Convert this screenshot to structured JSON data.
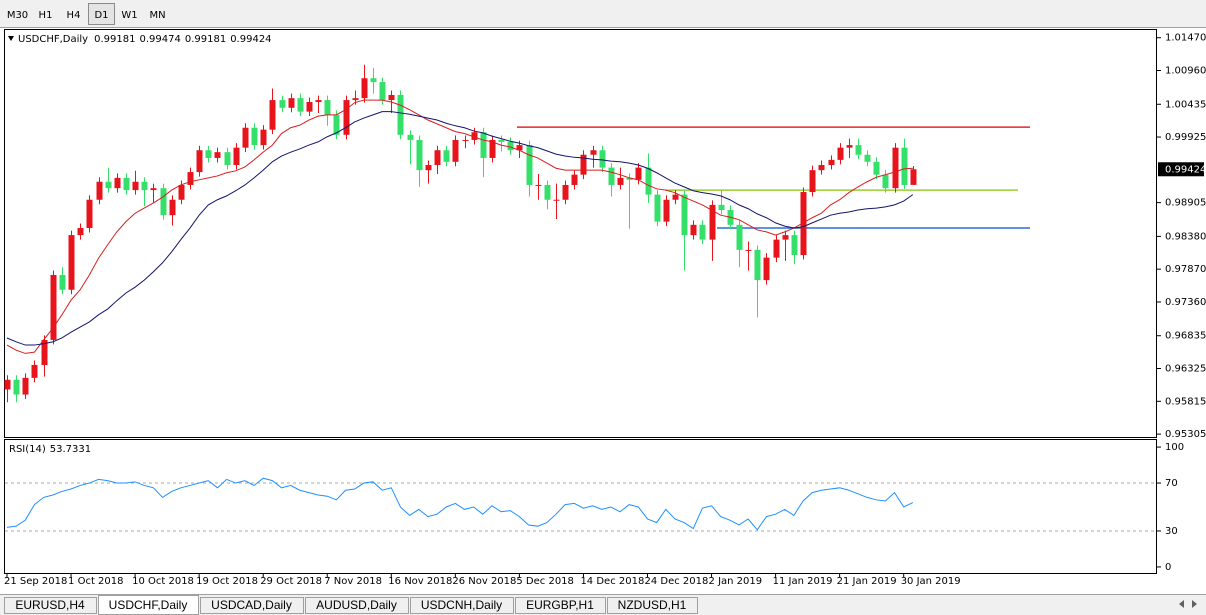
{
  "toolbar": {
    "timeframes": [
      {
        "label": "M30"
      },
      {
        "label": "H1"
      },
      {
        "label": "H4"
      },
      {
        "label": "D1",
        "selected": true
      },
      {
        "label": "W1"
      },
      {
        "label": "MN"
      }
    ]
  },
  "chart_data": [
    {
      "type": "candlestick",
      "title": "USDCHF,Daily",
      "header_ohlc": [
        0.99181,
        0.99474,
        0.99181,
        0.99424
      ],
      "categories": [
        "21 Sep 2018",
        null,
        null,
        null,
        null,
        null,
        null,
        "1 Oct 2018",
        null,
        null,
        null,
        null,
        null,
        null,
        "10 Oct 2018",
        null,
        null,
        null,
        null,
        null,
        null,
        "19 Oct 2018",
        null,
        null,
        null,
        null,
        null,
        null,
        "29 Oct 2018",
        null,
        null,
        null,
        null,
        null,
        null,
        "7 Nov 2018",
        null,
        null,
        null,
        null,
        null,
        null,
        "16 Nov 2018",
        null,
        null,
        null,
        null,
        null,
        null,
        "26 Nov 2018",
        null,
        null,
        null,
        null,
        null,
        null,
        "5 Dec 2018",
        null,
        null,
        null,
        null,
        null,
        null,
        "14 Dec 2018",
        null,
        null,
        null,
        null,
        null,
        null,
        "24 Dec 2018",
        null,
        null,
        null,
        null,
        null,
        null,
        "2 Jan 2019",
        null,
        null,
        null,
        null,
        null,
        null,
        "11 Jan 2019",
        null,
        null,
        null,
        null,
        null,
        null,
        "21 Jan 2019",
        null,
        null,
        null,
        null,
        null,
        null,
        "30 Jan 2019",
        null
      ],
      "open": [
        0.96,
        0.9615,
        0.9592,
        0.9618,
        0.9638,
        0.9677,
        0.9778,
        0.9755,
        0.984,
        0.9851,
        0.9895,
        0.9923,
        0.9913,
        0.9929,
        0.991,
        0.9923,
        0.991,
        0.9913,
        0.9871,
        0.9895,
        0.9918,
        0.9938,
        0.9972,
        0.996,
        0.9969,
        0.9949,
        0.9976,
        1.0007,
        0.998,
        1.0004,
        1.005,
        1.0038,
        1.0053,
        1.0032,
        1.0047,
        1.005,
        1.0027,
        0.9996,
        1.005,
        1.0053,
        1.0084,
        1.0078,
        1.005,
        1.0058,
        0.9996,
        0.9988,
        0.9941,
        0.9949,
        0.9972,
        0.9954,
        0.9988,
        0.9988,
        1.0,
        0.996,
        0.9988,
        0.9985,
        0.9972,
        0.998,
        0.9918,
        0.9918,
        0.9895,
        0.9895,
        0.9918,
        0.9934,
        0.9965,
        0.9972,
        0.9945,
        0.9918,
        0.9929,
        0.9926,
        0.9945,
        0.9903,
        0.9861,
        0.9895,
        0.9903,
        0.984,
        0.9856,
        0.9833,
        0.9887,
        0.9879,
        0.9856,
        0.9817,
        0.9817,
        0.977,
        0.9805,
        0.9833,
        0.984,
        0.9809,
        0.9907,
        0.9941,
        0.9949,
        0.9957,
        0.9976,
        0.998,
        0.9965,
        0.9954,
        0.9934,
        0.9913,
        0.9976,
        0.99181
      ],
      "high": [
        0.9622,
        0.9622,
        0.9625,
        0.9645,
        0.9684,
        0.9785,
        0.979,
        0.9847,
        0.9858,
        0.9902,
        0.993,
        0.9945,
        0.9936,
        0.9936,
        0.994,
        0.993,
        0.992,
        0.992,
        0.9902,
        0.9925,
        0.9945,
        0.9979,
        0.9979,
        0.9976,
        0.9976,
        0.9983,
        1.0014,
        1.0014,
        1.0011,
        1.0068,
        1.0057,
        1.006,
        1.006,
        1.0054,
        1.0057,
        1.0057,
        1.0034,
        1.0057,
        1.0065,
        1.0105,
        1.01,
        1.0085,
        1.0065,
        1.0065,
        1.0003,
        0.9995,
        0.9956,
        0.9979,
        0.9979,
        0.9995,
        0.9995,
        1.0007,
        1.0007,
        0.9995,
        0.9995,
        0.9992,
        0.9987,
        0.9987,
        0.9935,
        0.9925,
        0.992,
        0.9925,
        0.9941,
        0.9972,
        0.9979,
        0.9979,
        0.9952,
        0.9945,
        0.9936,
        0.9952,
        0.9967,
        0.991,
        0.9902,
        0.991,
        0.991,
        0.9863,
        0.9863,
        0.9894,
        0.991,
        0.9886,
        0.9863,
        0.983,
        0.9824,
        0.9812,
        0.984,
        0.9847,
        0.9847,
        0.9914,
        0.9948,
        0.9956,
        0.9964,
        0.9983,
        0.999,
        0.999,
        0.9972,
        0.9961,
        0.9941,
        0.9983,
        0.999,
        0.99474
      ],
      "low": [
        0.958,
        0.958,
        0.9585,
        0.9611,
        0.962,
        0.967,
        0.9748,
        0.9748,
        0.9833,
        0.9844,
        0.9888,
        0.9906,
        0.9906,
        0.9903,
        0.9903,
        0.9885,
        0.989,
        0.9864,
        0.9855,
        0.9888,
        0.9911,
        0.9931,
        0.9953,
        0.9953,
        0.9942,
        0.9942,
        0.9969,
        0.9973,
        0.9973,
        0.9997,
        1.0031,
        1.0031,
        1.0025,
        1.0025,
        1.003,
        1.001,
        0.9989,
        0.9989,
        1.0043,
        1.0046,
        1.006,
        1.0043,
        1.003,
        0.9989,
        0.995,
        0.9915,
        0.992,
        0.9935,
        0.9947,
        0.9947,
        0.9975,
        0.9981,
        0.993,
        0.9953,
        0.997,
        0.9965,
        0.996,
        0.99,
        0.9895,
        0.988,
        0.9865,
        0.9888,
        0.9911,
        0.9927,
        0.9945,
        0.9938,
        0.99,
        0.9911,
        0.985,
        0.9919,
        0.989,
        0.9854,
        0.9854,
        0.9888,
        0.9785,
        0.9833,
        0.9826,
        0.98,
        0.9872,
        0.9849,
        0.979,
        0.9785,
        0.9712,
        0.9763,
        0.9798,
        0.98,
        0.9795,
        0.9802,
        0.99,
        0.9934,
        0.9942,
        0.995,
        0.996,
        0.9958,
        0.9947,
        0.9927,
        0.9906,
        0.9906,
        0.9912,
        0.99181
      ],
      "close": [
        0.9615,
        0.9592,
        0.9618,
        0.9638,
        0.9677,
        0.9778,
        0.9755,
        0.984,
        0.9851,
        0.9895,
        0.9923,
        0.9913,
        0.9929,
        0.991,
        0.9923,
        0.991,
        0.9913,
        0.9871,
        0.9895,
        0.9918,
        0.9938,
        0.9972,
        0.996,
        0.9969,
        0.9949,
        0.9976,
        1.0007,
        0.998,
        1.0004,
        1.005,
        1.0038,
        1.0053,
        1.0032,
        1.0047,
        1.005,
        1.0027,
        0.9996,
        1.005,
        1.0053,
        1.0084,
        1.0078,
        1.005,
        1.0058,
        0.9996,
        0.9988,
        0.9941,
        0.9949,
        0.9972,
        0.9954,
        0.9988,
        0.9988,
        1.0,
        0.996,
        0.9988,
        0.9985,
        0.9972,
        0.998,
        0.9918,
        0.9918,
        0.9895,
        0.9895,
        0.9918,
        0.9934,
        0.9965,
        0.9972,
        0.9945,
        0.9918,
        0.9929,
        0.9926,
        0.9945,
        0.9903,
        0.9861,
        0.9895,
        0.9903,
        0.984,
        0.9856,
        0.9833,
        0.9887,
        0.9879,
        0.9856,
        0.9817,
        0.9817,
        0.977,
        0.9805,
        0.9833,
        0.984,
        0.9809,
        0.9907,
        0.9941,
        0.9949,
        0.9957,
        0.9976,
        0.998,
        0.9965,
        0.9954,
        0.9934,
        0.9913,
        0.9976,
        0.9918,
        0.99424
      ],
      "up_color": "#e8141c",
      "down_color": "#35e06a",
      "overlays": [
        {
          "color": "#d81e1e",
          "values": [
            0.9669,
            0.9661,
            0.9656,
            0.9658,
            0.9677,
            0.9695,
            0.9716,
            0.9739,
            0.9755,
            0.9778,
            0.9804,
            0.9825,
            0.9845,
            0.9861,
            0.9874,
            0.9882,
            0.989,
            0.9899,
            0.991,
            0.9918,
            0.9923,
            0.9926,
            0.9929,
            0.9932,
            0.9937,
            0.994,
            0.9946,
            0.9957,
            0.9969,
            0.998,
            0.9998,
            1.0007,
            1.0011,
            1.0019,
            1.0025,
            1.0027,
            1.0027,
            1.0035,
            1.0046,
            1.005,
            1.005,
            1.005,
            1.0047,
            1.0042,
            1.0035,
            1.0027,
            1.0019,
            1.0013,
            1.0007,
            1.0001,
            0.9998,
            0.9993,
            0.9988,
            0.9985,
            0.998,
            0.9977,
            0.9972,
            0.9965,
            0.996,
            0.9952,
            0.9944,
            0.9941,
            0.9941,
            0.9941,
            0.9941,
            0.9941,
            0.9938,
            0.9934,
            0.9929,
            0.9926,
            0.9918,
            0.9912,
            0.991,
            0.9906,
            0.9899,
            0.9893,
            0.9887,
            0.9879,
            0.9871,
            0.9868,
            0.9864,
            0.9856,
            0.9848,
            0.9845,
            0.984,
            0.9845,
            0.9851,
            0.9859,
            0.9867,
            0.9874,
            0.9887,
            0.9895,
            0.9906,
            0.9915,
            0.9923,
            0.993,
            0.9934,
            0.9938,
            0.9943,
            0.9944
          ]
        },
        {
          "color": "#14146e",
          "values": [
            0.968,
            0.9674,
            0.9669,
            0.9669,
            0.9671,
            0.9674,
            0.968,
            0.9689,
            0.9697,
            0.9705,
            0.9716,
            0.9725,
            0.9738,
            0.975,
            0.9759,
            0.977,
            0.9783,
            0.9797,
            0.9814,
            0.9833,
            0.9851,
            0.9871,
            0.9887,
            0.9895,
            0.9901,
            0.9909,
            0.9918,
            0.9929,
            0.9941,
            0.9954,
            0.9963,
            0.9969,
            0.9974,
            0.998,
            0.9985,
            0.9993,
            0.9999,
            1.0007,
            1.0016,
            1.0022,
            1.0027,
            1.0032,
            1.0032,
            1.003,
            1.0028,
            1.0025,
            1.0022,
            1.0019,
            1.0014,
            1.001,
            1.0007,
            1.0002,
            0.9999,
            0.9994,
            0.999,
            0.9986,
            0.9983,
            0.9979,
            0.9976,
            0.9971,
            0.9966,
            0.9963,
            0.9961,
            0.996,
            0.9958,
            0.9957,
            0.9955,
            0.9954,
            0.9952,
            0.9949,
            0.9944,
            0.9937,
            0.9929,
            0.9921,
            0.9915,
            0.9909,
            0.9906,
            0.9904,
            0.9901,
            0.9895,
            0.9887,
            0.9881,
            0.9873,
            0.9867,
            0.9859,
            0.9854,
            0.9851,
            0.9853,
            0.9859,
            0.9865,
            0.9871,
            0.9874,
            0.9876,
            0.9879,
            0.9881,
            0.9882,
            0.9884,
            0.9887,
            0.9893,
            0.9903
          ]
        }
      ],
      "hlines": [
        {
          "value": 1.0008,
          "color": "#e02828"
        },
        {
          "value": 0.991,
          "color": "#9acd32"
        },
        {
          "value": 0.9851,
          "color": "#2a6fd6"
        }
      ],
      "last_price": 0.99424,
      "ylim": [
        0.9526,
        1.0159
      ],
      "yticks": [
        {
          "value": 1.0147,
          "label": "1.01470"
        },
        {
          "value": 1.0096,
          "label": "1.00960"
        },
        1.00435,
        0.99925,
        0.98905,
        {
          "value": 0.9838,
          "label": "0.98380"
        },
        {
          "value": 0.9787,
          "label": "0.97870"
        },
        {
          "value": 0.9736,
          "label": "0.97360"
        },
        0.96835,
        0.96325,
        0.95815,
        0.95305
      ]
    },
    {
      "type": "line",
      "title": "RSI(14)",
      "series": [
        {
          "color": "#1e90ff",
          "values": [
            33,
            34,
            39,
            52,
            58,
            60,
            63,
            65,
            68,
            70,
            73,
            72,
            70,
            70,
            71,
            68,
            66,
            58,
            63,
            66,
            68,
            70,
            72,
            66,
            73,
            70,
            72,
            68,
            74,
            72,
            66,
            68,
            64,
            62,
            60,
            59,
            56,
            64,
            65,
            70,
            71,
            64,
            66,
            50,
            43,
            48,
            42,
            44,
            50,
            53,
            48,
            50,
            44,
            51,
            46,
            47,
            42,
            35,
            34,
            37,
            44,
            52,
            53,
            49,
            51,
            48,
            50,
            46,
            52,
            50,
            40,
            37,
            48,
            40,
            37,
            32,
            49,
            51,
            42,
            39,
            35,
            40,
            31,
            42,
            44,
            48,
            43,
            55,
            62,
            64,
            65,
            66,
            64,
            61,
            58,
            56,
            55,
            62,
            50,
            53.7331
          ]
        }
      ],
      "levels": [
        70,
        30
      ],
      "ylim": [
        -5.9,
        105.9
      ],
      "yticks": [
        100,
        70,
        30,
        0
      ]
    }
  ],
  "tabs": [
    {
      "label": "EURUSD,H4"
    },
    {
      "label": "USDCHF,Daily",
      "active": true
    },
    {
      "label": "USDCAD,Daily"
    },
    {
      "label": "AUDUSD,Daily"
    },
    {
      "label": "USDCNH,Daily"
    },
    {
      "label": "EURGBP,H1"
    },
    {
      "label": "NZDUSD,H1"
    }
  ]
}
